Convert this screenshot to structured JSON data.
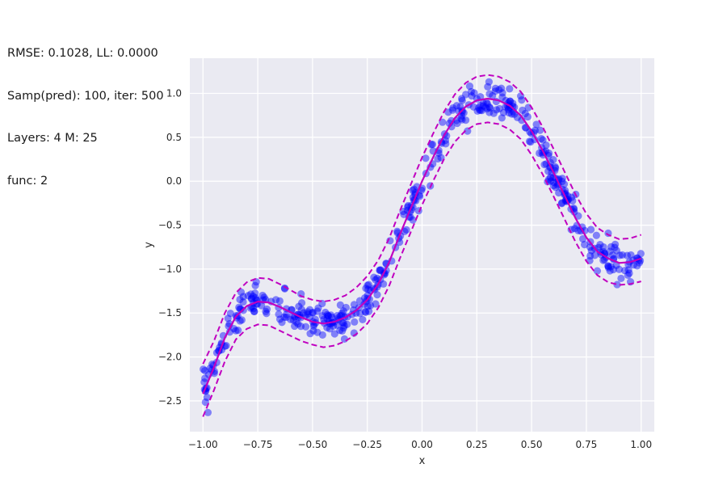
{
  "info": {
    "line1": "RMSE: 0.1028, LL: 0.0000",
    "line2": "Samp(pred): 100, iter: 500",
    "line3": "Layers: 4 M: 25",
    "line4": "func: 2"
  },
  "chart_data": {
    "type": "scatter",
    "xlabel": "x",
    "ylabel": "y",
    "xlim": [
      -1.06,
      1.06
    ],
    "ylim": [
      -2.85,
      1.4
    ],
    "xticks": [
      -1.0,
      -0.75,
      -0.5,
      -0.25,
      0.0,
      0.25,
      0.5,
      0.75,
      1.0
    ],
    "xtick_labels": [
      "−1.00",
      "−0.75",
      "−0.50",
      "−0.25",
      "0.00",
      "0.25",
      "0.50",
      "0.75",
      "1.00"
    ],
    "yticks": [
      1.0,
      0.5,
      0.0,
      -0.5,
      -1.0,
      -1.5,
      -2.0,
      -2.5
    ],
    "ytick_labels": [
      "1.0",
      "0.5",
      "0.0",
      "−0.5",
      "−1.0",
      "−1.5",
      "−2.0",
      "−2.5"
    ],
    "grid": true,
    "background": "#eaeaf2",
    "colors": {
      "points": "#0000ff",
      "mean": "#c000c0",
      "band": "#c000c0"
    },
    "mean_curve": {
      "x": [
        -1.0,
        -0.95,
        -0.9,
        -0.85,
        -0.8,
        -0.75,
        -0.7,
        -0.65,
        -0.6,
        -0.55,
        -0.5,
        -0.45,
        -0.4,
        -0.35,
        -0.3,
        -0.25,
        -0.2,
        -0.15,
        -0.1,
        -0.05,
        0.0,
        0.05,
        0.1,
        0.15,
        0.2,
        0.25,
        0.3,
        0.35,
        0.4,
        0.45,
        0.5,
        0.55,
        0.6,
        0.65,
        0.7,
        0.75,
        0.8,
        0.85,
        0.9,
        0.95,
        1.0
      ],
      "y": [
        -2.42,
        -2.12,
        -1.78,
        -1.54,
        -1.42,
        -1.37,
        -1.38,
        -1.43,
        -1.49,
        -1.55,
        -1.6,
        -1.62,
        -1.6,
        -1.55,
        -1.47,
        -1.35,
        -1.17,
        -0.92,
        -0.6,
        -0.3,
        0.0,
        0.27,
        0.52,
        0.72,
        0.85,
        0.92,
        0.94,
        0.92,
        0.86,
        0.75,
        0.57,
        0.35,
        0.1,
        -0.16,
        -0.42,
        -0.64,
        -0.8,
        -0.88,
        -0.93,
        -0.92,
        -0.88
      ]
    },
    "upper_band": {
      "x": [
        -1.0,
        -0.95,
        -0.9,
        -0.85,
        -0.8,
        -0.75,
        -0.7,
        -0.65,
        -0.6,
        -0.55,
        -0.5,
        -0.45,
        -0.4,
        -0.35,
        -0.3,
        -0.25,
        -0.2,
        -0.15,
        -0.1,
        -0.05,
        0.0,
        0.05,
        0.1,
        0.15,
        0.2,
        0.25,
        0.3,
        0.35,
        0.4,
        0.45,
        0.5,
        0.55,
        0.6,
        0.65,
        0.7,
        0.75,
        0.8,
        0.85,
        0.9,
        0.95,
        1.0
      ],
      "y": [
        -2.08,
        -1.82,
        -1.5,
        -1.27,
        -1.15,
        -1.1,
        -1.11,
        -1.17,
        -1.24,
        -1.31,
        -1.35,
        -1.37,
        -1.35,
        -1.3,
        -1.21,
        -1.08,
        -0.9,
        -0.65,
        -0.33,
        -0.03,
        0.27,
        0.54,
        0.79,
        0.99,
        1.12,
        1.19,
        1.21,
        1.19,
        1.13,
        1.02,
        0.84,
        0.62,
        0.37,
        0.11,
        -0.15,
        -0.37,
        -0.53,
        -0.61,
        -0.66,
        -0.65,
        -0.61
      ]
    },
    "lower_band": {
      "x": [
        -1.0,
        -0.95,
        -0.9,
        -0.85,
        -0.8,
        -0.75,
        -0.7,
        -0.65,
        -0.6,
        -0.55,
        -0.5,
        -0.45,
        -0.4,
        -0.35,
        -0.3,
        -0.25,
        -0.2,
        -0.15,
        -0.1,
        -0.05,
        0.0,
        0.05,
        0.1,
        0.15,
        0.2,
        0.25,
        0.3,
        0.35,
        0.4,
        0.45,
        0.5,
        0.55,
        0.6,
        0.65,
        0.7,
        0.75,
        0.8,
        0.85,
        0.9,
        0.95,
        1.0
      ],
      "y": [
        -2.68,
        -2.38,
        -2.05,
        -1.8,
        -1.68,
        -1.63,
        -1.64,
        -1.7,
        -1.76,
        -1.82,
        -1.86,
        -1.89,
        -1.87,
        -1.82,
        -1.74,
        -1.62,
        -1.44,
        -1.19,
        -0.87,
        -0.57,
        -0.27,
        0.0,
        0.25,
        0.45,
        0.58,
        0.65,
        0.67,
        0.65,
        0.59,
        0.48,
        0.3,
        0.08,
        -0.17,
        -0.43,
        -0.69,
        -0.91,
        -1.07,
        -1.15,
        -1.18,
        -1.17,
        -1.14
      ]
    },
    "noise_sd": 0.1,
    "num_points": 500
  }
}
